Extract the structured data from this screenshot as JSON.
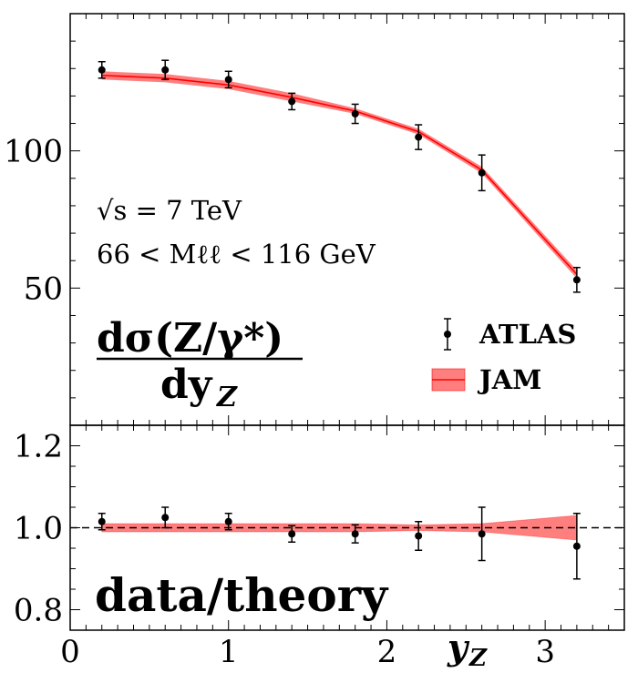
{
  "chart_data": [
    {
      "type": "line",
      "panel": "top",
      "xlim": [
        0,
        3.5
      ],
      "ylim": [
        0,
        150
      ],
      "yticks": [
        50,
        100
      ],
      "ytick_labels": [
        "50",
        "100"
      ],
      "title_fraction": {
        "numerator": "dσ(Z/γ*)",
        "denominator": "dy",
        "denominator_sub": "Z"
      },
      "annotations": {
        "energy": "√s = 7 TeV",
        "mass_range": "66 < Mℓℓ < 116 GeV"
      },
      "legend": {
        "placement": "bottom-right",
        "data_label": "ATLAS",
        "theory_label": "JAM"
      },
      "series": [
        {
          "name": "ATLAS",
          "kind": "points",
          "x": [
            0.2,
            0.6,
            1.0,
            1.4,
            1.8,
            2.2,
            2.6,
            3.2
          ],
          "y": [
            129.5,
            129.5,
            126.0,
            118.0,
            113.5,
            105.0,
            92.0,
            53.0
          ],
          "yerr": [
            3.0,
            3.5,
            3.0,
            3.0,
            3.5,
            4.5,
            6.5,
            4.5
          ]
        },
        {
          "name": "JAM",
          "kind": "band",
          "x": [
            0.2,
            0.6,
            1.0,
            1.4,
            1.8,
            2.2,
            2.6,
            3.2
          ],
          "y": [
            127.5,
            126.5,
            124.0,
            119.5,
            114.5,
            107.0,
            93.0,
            55.0
          ],
          "y_low": [
            126.0,
            125.0,
            122.5,
            118.0,
            113.5,
            106.0,
            91.8,
            53.5
          ],
          "y_high": [
            129.0,
            128.0,
            125.5,
            121.0,
            115.5,
            108.0,
            94.2,
            56.5
          ]
        }
      ]
    },
    {
      "type": "line",
      "panel": "bottom",
      "xlim": [
        0,
        3.5
      ],
      "ylim": [
        0.75,
        1.25
      ],
      "xticks": [
        0,
        1,
        2,
        3
      ],
      "xtick_labels": [
        "0",
        "1",
        "2",
        "3"
      ],
      "yticks": [
        0.8,
        1.0,
        1.2
      ],
      "ytick_labels": [
        "0.8",
        "1.0",
        "1.2"
      ],
      "xlabel": "y",
      "xlabel_sub": "Z",
      "panel_label": "data/theory",
      "reference_line": 1.0,
      "series": [
        {
          "name": "ATLAS",
          "kind": "points",
          "x": [
            0.2,
            0.6,
            1.0,
            1.4,
            1.8,
            2.2,
            2.6,
            3.2
          ],
          "y": [
            1.015,
            1.025,
            1.015,
            0.985,
            0.985,
            0.98,
            0.985,
            0.955
          ],
          "yerr": [
            0.02,
            0.025,
            0.02,
            0.02,
            0.022,
            0.035,
            0.065,
            0.08
          ]
        },
        {
          "name": "JAM",
          "kind": "band",
          "x": [
            0.2,
            0.6,
            1.0,
            1.4,
            1.8,
            2.2,
            2.6,
            3.2
          ],
          "y_low": [
            0.99,
            0.99,
            0.99,
            0.99,
            0.99,
            0.993,
            0.99,
            0.97
          ],
          "y_high": [
            1.01,
            1.01,
            1.01,
            1.01,
            1.01,
            1.007,
            1.01,
            1.03
          ]
        }
      ]
    }
  ]
}
